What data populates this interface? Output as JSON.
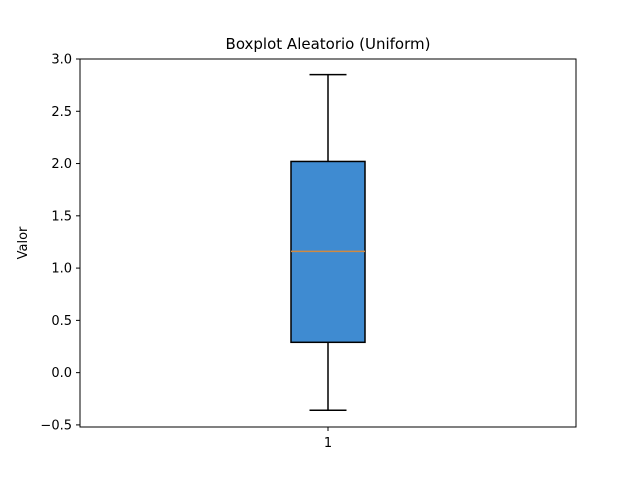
{
  "chart_data": {
    "type": "boxplot",
    "title": "Boxplot Aleatorio (Uniform)",
    "xlabel": "",
    "ylabel": "Valor",
    "ylim": [
      -0.52,
      3.0
    ],
    "y_ticks": [
      -0.5,
      0.0,
      0.5,
      1.0,
      1.5,
      2.0,
      2.5,
      3.0
    ],
    "y_tick_labels": [
      "−0.5",
      "0.0",
      "0.5",
      "1.0",
      "1.5",
      "2.0",
      "2.5",
      "3.0"
    ],
    "categories": [
      "1"
    ],
    "boxes": [
      {
        "category": "1",
        "whisker_low": -0.36,
        "q1": 0.29,
        "median": 1.16,
        "q3": 2.02,
        "whisker_high": 2.85
      }
    ],
    "grid": false,
    "colors": {
      "box_fill": "#3f8bd1",
      "median": "#d08a42",
      "edge": "#000000"
    }
  }
}
